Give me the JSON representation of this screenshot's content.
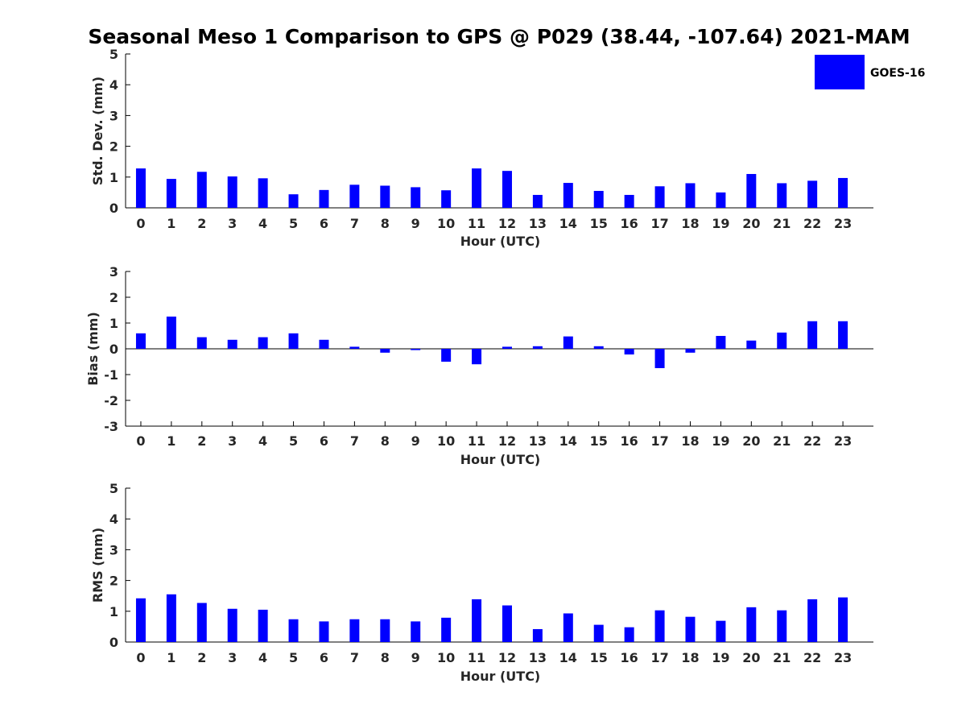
{
  "figure_title": "Seasonal Meso 1 Comparison to GPS @ P029 (38.44, -107.64) 2021-MAM",
  "legend": {
    "label": "GOES-16",
    "color": "#0000ff"
  },
  "chart_data": [
    {
      "type": "bar",
      "title": "Seasonal Meso 1 Comparison to GPS @ P029 (38.44, -107.64) 2021-MAM",
      "xlabel": "Hour (UTC)",
      "ylabel": "Std. Dev. (mm)",
      "ylim": [
        0,
        5
      ],
      "yticks": [
        "0",
        "1",
        "2",
        "3",
        "4",
        "5"
      ],
      "categories": [
        "0",
        "1",
        "2",
        "3",
        "4",
        "5",
        "6",
        "7",
        "8",
        "9",
        "10",
        "11",
        "12",
        "13",
        "14",
        "15",
        "16",
        "17",
        "18",
        "19",
        "20",
        "21",
        "22",
        "23"
      ],
      "series": [
        {
          "name": "GOES-16",
          "color": "#0000ff",
          "values": [
            1.28,
            0.94,
            1.17,
            1.02,
            0.96,
            0.44,
            0.58,
            0.75,
            0.72,
            0.67,
            0.57,
            1.28,
            1.2,
            0.42,
            0.81,
            0.55,
            0.42,
            0.7,
            0.8,
            0.5,
            1.1,
            0.8,
            0.88,
            0.97
          ]
        }
      ]
    },
    {
      "type": "bar",
      "xlabel": "Hour (UTC)",
      "ylabel": "Bias (mm)",
      "ylim": [
        -3,
        3
      ],
      "yticks": [
        "-3",
        "-2",
        "-1",
        "0",
        "1",
        "2",
        "3"
      ],
      "categories": [
        "0",
        "1",
        "2",
        "3",
        "4",
        "5",
        "6",
        "7",
        "8",
        "9",
        "10",
        "11",
        "12",
        "13",
        "14",
        "15",
        "16",
        "17",
        "18",
        "19",
        "20",
        "21",
        "22",
        "23"
      ],
      "series": [
        {
          "name": "GOES-16",
          "color": "#0000ff",
          "values": [
            0.6,
            1.25,
            0.45,
            0.35,
            0.45,
            0.6,
            0.35,
            0.08,
            -0.15,
            -0.05,
            -0.5,
            -0.6,
            0.08,
            0.1,
            0.48,
            0.1,
            -0.22,
            -0.75,
            -0.15,
            0.5,
            0.32,
            0.63,
            1.07,
            1.07
          ]
        }
      ]
    },
    {
      "type": "bar",
      "xlabel": "Hour (UTC)",
      "ylabel": "RMS (mm)",
      "ylim": [
        0,
        5
      ],
      "yticks": [
        "0",
        "1",
        "2",
        "3",
        "4",
        "5"
      ],
      "categories": [
        "0",
        "1",
        "2",
        "3",
        "4",
        "5",
        "6",
        "7",
        "8",
        "9",
        "10",
        "11",
        "12",
        "13",
        "14",
        "15",
        "16",
        "17",
        "18",
        "19",
        "20",
        "21",
        "22",
        "23"
      ],
      "series": [
        {
          "name": "GOES-16",
          "color": "#0000ff",
          "values": [
            1.42,
            1.55,
            1.27,
            1.08,
            1.05,
            0.74,
            0.67,
            0.74,
            0.74,
            0.67,
            0.79,
            1.39,
            1.19,
            0.42,
            0.93,
            0.56,
            0.48,
            1.03,
            0.82,
            0.69,
            1.13,
            1.03,
            1.39,
            1.45
          ]
        }
      ]
    }
  ]
}
